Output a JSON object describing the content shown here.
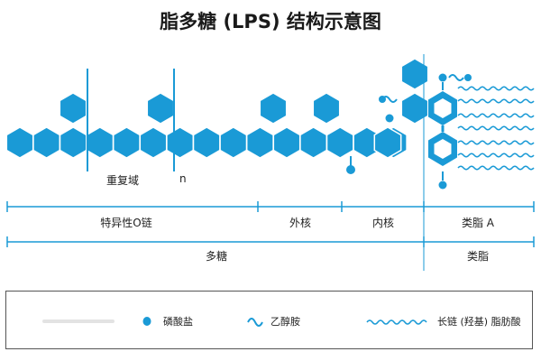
{
  "title": "脂多糖 (LPS) 结构示意图",
  "colors": {
    "hexagon_fill": "#1a9ad6",
    "hexagon_stroke": "#ffffff",
    "bracket_line": "#1a9ad6",
    "divider": "#1a9ad6",
    "fatty_acid": "#1a9ad6"
  },
  "labels": {
    "repeat_domain": "重复域",
    "repeat_n": "n",
    "o_chain": "特异性O链",
    "outer_core": "外核",
    "inner_core": "内核",
    "lipid_a": "类脂 A",
    "polysaccharide": "多糖",
    "lipid": "类脂"
  },
  "legend": {
    "sugar": {
      "icon": "sugar-bar-icon",
      "label": ""
    },
    "phosphate": {
      "icon": "phosphate-dot-icon",
      "label": "磷酸盐"
    },
    "ethanolamine": {
      "icon": "ethanolamine-wave-icon",
      "label": "乙醇胺"
    },
    "fatty_acid": {
      "icon": "fatty-acid-wave-icon",
      "label": "长链 (羟基) 脂肪酸"
    }
  }
}
